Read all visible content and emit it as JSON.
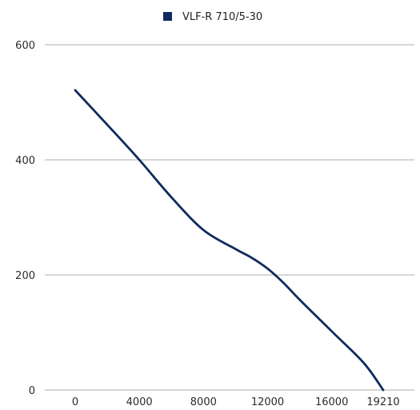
{
  "chart_data": {
    "type": "line",
    "title": "",
    "xlabel": "",
    "ylabel": "",
    "xlim": [
      0,
      19210
    ],
    "ylim": [
      0,
      600
    ],
    "x_ticks": [
      0,
      4000,
      8000,
      12000,
      16000,
      19210
    ],
    "y_ticks": [
      0,
      200,
      400,
      600
    ],
    "x_tick_labels": [
      "0",
      "4000",
      "8000",
      "12000",
      "16000",
      "19210"
    ],
    "y_tick_labels": [
      "0",
      "200",
      "400",
      "600"
    ],
    "grid": true,
    "legend_position": "top-center",
    "series": [
      {
        "name": "VLF-R 710/5-30",
        "color": "#0f2a5c",
        "points": [
          [
            0,
            521
          ],
          [
            2000,
            461
          ],
          [
            4000,
            400
          ],
          [
            6000,
            335
          ],
          [
            8000,
            278
          ],
          [
            10000,
            245
          ],
          [
            11000,
            230
          ],
          [
            12000,
            211
          ],
          [
            13000,
            186
          ],
          [
            14000,
            157
          ],
          [
            16000,
            102
          ],
          [
            18000,
            47
          ],
          [
            19210,
            0
          ]
        ]
      }
    ]
  }
}
